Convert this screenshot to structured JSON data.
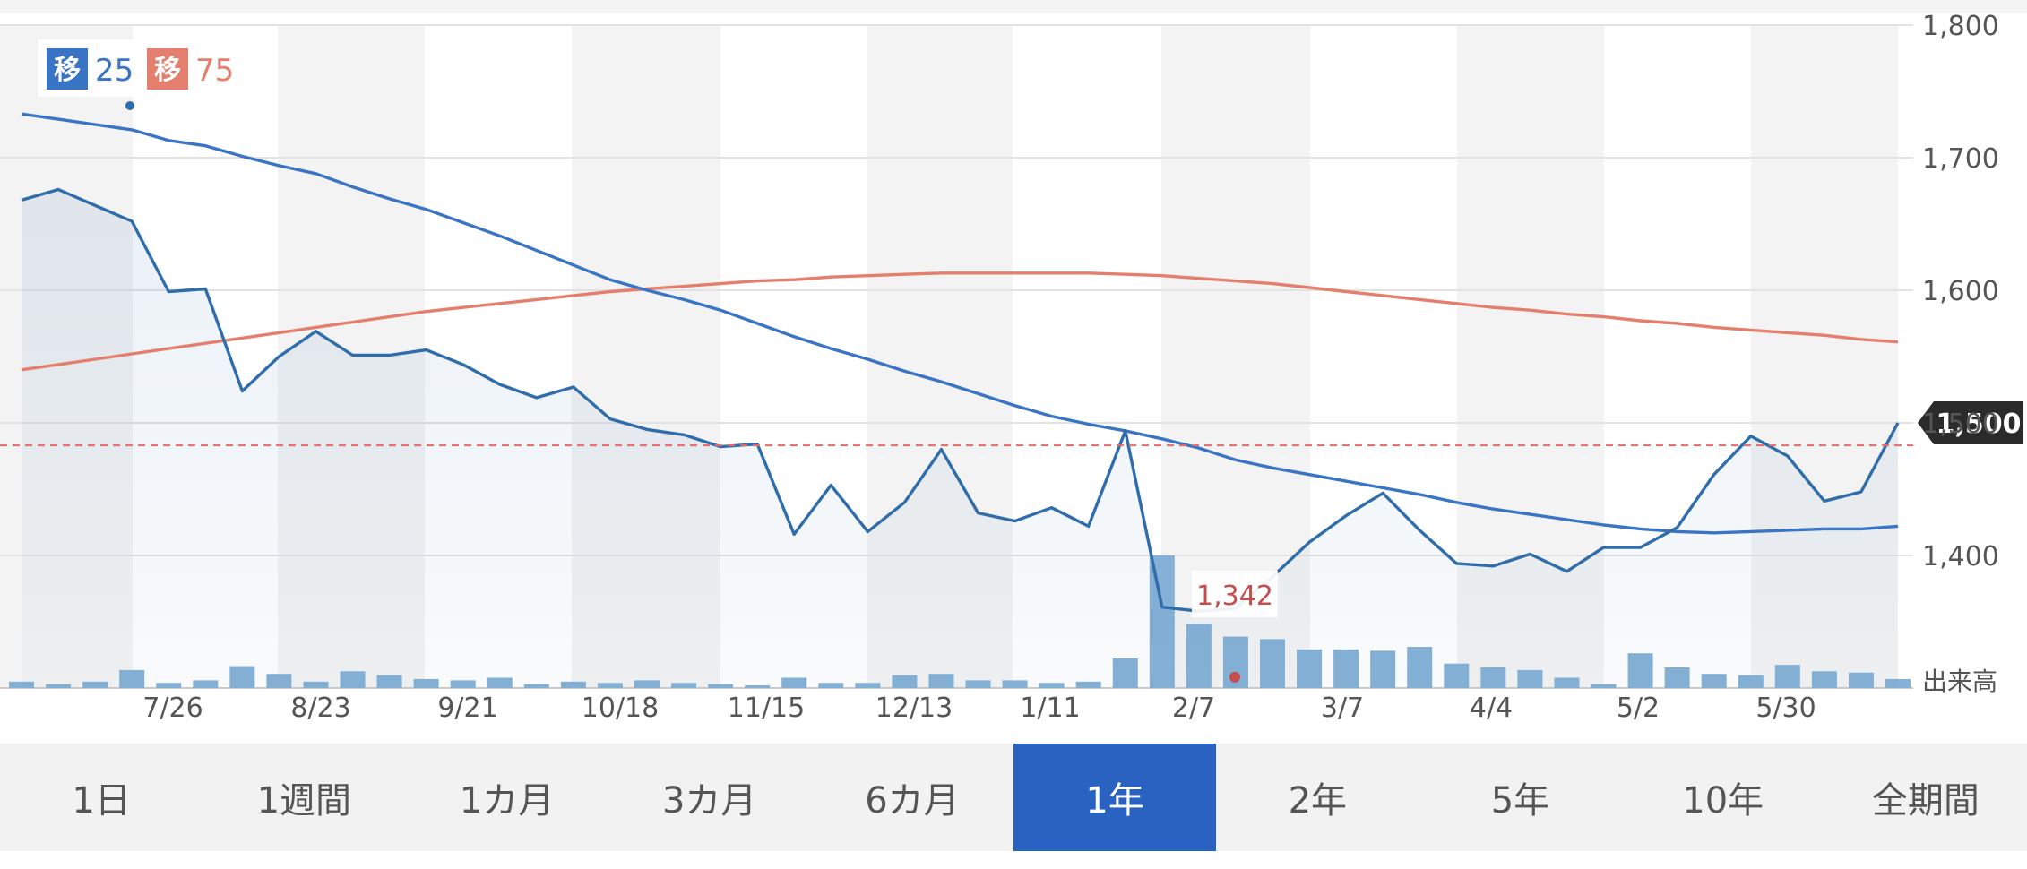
{
  "chart_data": {
    "type": "line",
    "ylim": [
      1300,
      1800
    ],
    "y_ticks": [
      "1,800",
      "1,700",
      "1,600",
      "1,500",
      "1,400"
    ],
    "x_ticks": [
      "7/26",
      "8/23",
      "9/21",
      "10/18",
      "11/15",
      "12/13",
      "1/11",
      "2/7",
      "3/7",
      "4/4",
      "5/2",
      "5/30"
    ],
    "volume_label": "出来高",
    "grid": true,
    "current_price_label": "1,500",
    "reference_line_value": 1483,
    "min_annotation": {
      "label": "1,342",
      "value": 1342
    },
    "legend": [
      {
        "badge": "移",
        "value": "25",
        "color": "#3a74c4"
      },
      {
        "badge": "移",
        "value": "75",
        "color": "#e47f6e"
      }
    ],
    "series": [
      {
        "kind": "price",
        "color": "#2f6dab",
        "values": [
          1668,
          1676,
          1664,
          1652,
          1599,
          1601,
          1524,
          1550,
          1569,
          1551,
          1551,
          1555,
          1544,
          1529,
          1519,
          1527,
          1503,
          1495,
          1491,
          1482,
          1484,
          1416,
          1453,
          1418,
          1440,
          1480,
          1432,
          1426,
          1436,
          1422,
          1494,
          1361,
          1358,
          1360,
          1384,
          1410,
          1430,
          1447,
          1419,
          1394,
          1392,
          1401,
          1388,
          1406,
          1406,
          1421,
          1461,
          1490,
          1475,
          1441,
          1448,
          1500
        ]
      },
      {
        "kind": "ma25",
        "color": "#3a74c4",
        "values": [
          1733,
          1729,
          1725,
          1721,
          1713,
          1709,
          1701,
          1694,
          1688,
          1678,
          1669,
          1661,
          1651,
          1641,
          1630,
          1619,
          1608,
          1600,
          1593,
          1585,
          1575,
          1565,
          1556,
          1548,
          1539,
          1531,
          1522,
          1513,
          1505,
          1499,
          1494,
          1488,
          1481,
          1472,
          1466,
          1461,
          1456,
          1451,
          1446,
          1440,
          1435,
          1431,
          1427,
          1423,
          1420,
          1418,
          1417,
          1418,
          1419,
          1420,
          1420,
          1422
        ]
      },
      {
        "kind": "ma75",
        "color": "#e47f6e",
        "values": [
          1540,
          1544,
          1548,
          1552,
          1556,
          1560,
          1564,
          1568,
          1572,
          1576,
          1580,
          1584,
          1587,
          1590,
          1593,
          1596,
          1599,
          1601,
          1603,
          1605,
          1607,
          1608,
          1610,
          1611,
          1612,
          1613,
          1613,
          1613,
          1613,
          1613,
          1612,
          1611,
          1609,
          1607,
          1605,
          1602,
          1599,
          1596,
          1593,
          1590,
          1587,
          1585,
          1582,
          1580,
          1577,
          1575,
          1572,
          1570,
          1568,
          1566,
          1563,
          1561
        ]
      }
    ],
    "volume": [
      5,
      3,
      5,
      14,
      4,
      6,
      17,
      11,
      5,
      13,
      10,
      7,
      6,
      8,
      3,
      5,
      4,
      6,
      4,
      3,
      2,
      8,
      4,
      4,
      10,
      11,
      6,
      6,
      4,
      5,
      23,
      103,
      50,
      40,
      38,
      30,
      30,
      29,
      32,
      19,
      16,
      14,
      8,
      3,
      27,
      16,
      11,
      10,
      18,
      13,
      12,
      7
    ]
  },
  "periods": [
    {
      "label": "1日"
    },
    {
      "label": "1週間"
    },
    {
      "label": "1カ月"
    },
    {
      "label": "3カ月"
    },
    {
      "label": "6カ月"
    },
    {
      "label": "1年",
      "active": true
    },
    {
      "label": "2年"
    },
    {
      "label": "5年"
    },
    {
      "label": "10年"
    },
    {
      "label": "全期間"
    }
  ],
  "colors": {
    "band": "#f3f3f3",
    "grid": "#e2e2e2",
    "axis_text": "#555555",
    "volume": "#86b1d6",
    "reference": "#e36b6b",
    "price_tag_bg": "#2b2b2b",
    "min_label": "#c44d4d",
    "active_tab": "#2a62c1"
  }
}
